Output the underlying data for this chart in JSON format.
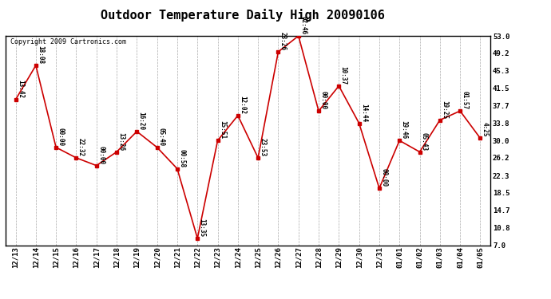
{
  "title": "Outdoor Temperature Daily High 20090106",
  "copyright": "Copyright 2009 Cartronics.com",
  "x_labels": [
    "12/13",
    "12/14",
    "12/15",
    "12/16",
    "12/17",
    "12/18",
    "12/19",
    "12/20",
    "12/21",
    "12/22",
    "12/23",
    "12/24",
    "12/25",
    "12/26",
    "12/27",
    "12/28",
    "12/29",
    "12/30",
    "12/31",
    "01/01",
    "01/02",
    "01/03",
    "01/04",
    "01/05"
  ],
  "y_values": [
    39.0,
    46.5,
    28.5,
    26.2,
    24.5,
    27.5,
    32.0,
    28.5,
    23.8,
    8.5,
    30.0,
    35.5,
    26.2,
    49.5,
    53.0,
    36.5,
    42.0,
    33.8,
    19.5,
    30.0,
    27.5,
    34.5,
    36.5,
    30.5
  ],
  "time_labels": [
    "13:42",
    "18:08",
    "00:00",
    "22:32",
    "00:00",
    "13:26",
    "16:20",
    "05:40",
    "00:58",
    "13:35",
    "15:51",
    "12:02",
    "23:53",
    "23:26",
    "02:46",
    "00:00",
    "10:37",
    "14:44",
    "00:00",
    "19:46",
    "05:43",
    "19:25",
    "01:57",
    "4:25"
  ],
  "y_ticks": [
    7.0,
    10.8,
    14.7,
    18.5,
    22.3,
    26.2,
    30.0,
    33.8,
    37.7,
    41.5,
    45.3,
    49.2,
    53.0
  ],
  "ylim": [
    7.0,
    53.0
  ],
  "line_color": "#cc0000",
  "marker_color": "#cc0000",
  "bg_color": "#ffffff",
  "grid_color": "#aaaaaa",
  "title_fontsize": 11,
  "label_fontsize": 6.5,
  "tick_fontsize": 6.5,
  "copyright_fontsize": 6.0
}
